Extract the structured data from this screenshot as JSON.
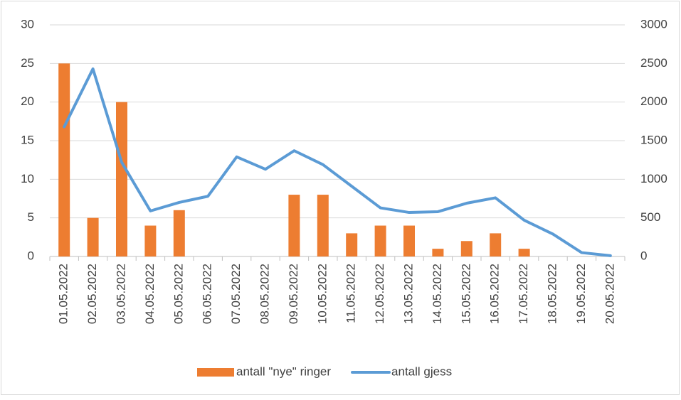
{
  "chart_data": {
    "type": "bar-line",
    "categories": [
      "01.05.2022",
      "02.05.2022",
      "03.05.2022",
      "04.05.2022",
      "05.05.2022",
      "06.05.2022",
      "07.05.2022",
      "08.05.2022",
      "09.05.2022",
      "10.05.2022",
      "11.05.2022",
      "12.05.2022",
      "13.05.2022",
      "14.05.2022",
      "15.05.2022",
      "16.05.2022",
      "17.05.2022",
      "18.05.2022",
      "19.05.2022",
      "20.05.2022"
    ],
    "series": [
      {
        "name": "antall \"nye\" ringer",
        "color": "#ed7d31",
        "type": "bar",
        "axis": "y",
        "values": [
          25,
          5,
          20,
          4,
          6,
          null,
          null,
          null,
          8,
          8,
          3,
          4,
          4,
          1,
          2,
          3,
          1,
          null,
          null,
          null
        ]
      },
      {
        "name": "antall gjess",
        "color": "#5b9bd5",
        "type": "line",
        "axis": "y2",
        "values": [
          1680,
          2430,
          1220,
          590,
          700,
          780,
          1290,
          1130,
          1370,
          1190,
          910,
          630,
          570,
          580,
          690,
          760,
          470,
          290,
          50,
          10
        ]
      }
    ],
    "ylim": [
      0,
      30
    ],
    "yticks": [
      0,
      5,
      10,
      15,
      20,
      25,
      30
    ],
    "y2lim": [
      0,
      3000
    ],
    "y2ticks": [
      0,
      500,
      1000,
      1500,
      2000,
      2500,
      3000
    ],
    "grid": true,
    "legend": "bottom"
  }
}
